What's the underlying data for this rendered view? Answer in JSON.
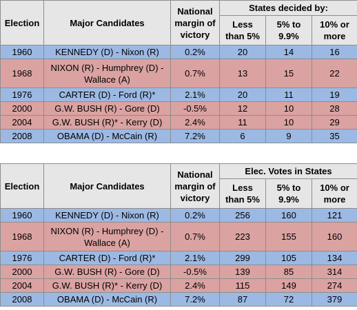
{
  "table1": {
    "header": {
      "election": "Election",
      "candidates": "Major Candidates",
      "margin_line1": "National",
      "margin_line2": "margin of",
      "margin_line3": "victory",
      "group": "States decided by:",
      "sub1_line1": "Less",
      "sub1_line2": "than 5%",
      "sub2_line1": "5% to",
      "sub2_line2": "9.9%",
      "sub3_line1": "10% or",
      "sub3_line2": "more"
    },
    "rows": [
      {
        "year": "1960",
        "candidates": "KENNEDY (D) - Nixon (R)",
        "margin": "0.2%",
        "lt5": "20",
        "mid": "14",
        "gt10": "16",
        "party": "blue"
      },
      {
        "year": "1968",
        "candidates_line1": "NIXON (R) - Humphrey (D) -",
        "candidates_line2": "Wallace (A)",
        "margin": "0.7%",
        "lt5": "13",
        "mid": "15",
        "gt10": "22",
        "party": "red"
      },
      {
        "year": "1976",
        "candidates": "CARTER (D) - Ford (R)*",
        "margin": "2.1%",
        "lt5": "20",
        "mid": "11",
        "gt10": "19",
        "party": "blue"
      },
      {
        "year": "2000",
        "candidates": "G.W. BUSH (R) - Gore (D)",
        "margin": "-0.5%",
        "lt5": "12",
        "mid": "10",
        "gt10": "28",
        "party": "red"
      },
      {
        "year": "2004",
        "candidates": "G.W. BUSH (R)* - Kerry (D)",
        "margin": "2.4%",
        "lt5": "11",
        "mid": "10",
        "gt10": "29",
        "party": "red"
      },
      {
        "year": "2008",
        "candidates": "OBAMA (D) - McCain (R)",
        "margin": "7.2%",
        "lt5": "6",
        "mid": "9",
        "gt10": "35",
        "party": "blue"
      }
    ]
  },
  "table2": {
    "header": {
      "election": "Election",
      "candidates": "Major Candidates",
      "margin_line1": "National",
      "margin_line2": "margin of",
      "margin_line3": "victory",
      "group": "Elec. Votes in States",
      "sub1_line1": "Less",
      "sub1_line2": "than 5%",
      "sub2_line1": "5% to",
      "sub2_line2": "9.9%",
      "sub3_line1": "10% or",
      "sub3_line2": "more"
    },
    "rows": [
      {
        "year": "1960",
        "candidates": "KENNEDY (D) - Nixon (R)",
        "margin": "0.2%",
        "lt5": "256",
        "mid": "160",
        "gt10": "121",
        "party": "blue"
      },
      {
        "year": "1968",
        "candidates_line1": "NIXON (R) - Humphrey (D) -",
        "candidates_line2": "Wallace (A)",
        "margin": "0.7%",
        "lt5": "223",
        "mid": "155",
        "gt10": "160",
        "party": "red"
      },
      {
        "year": "1976",
        "candidates": "CARTER (D) - Ford (R)*",
        "margin": "2.1%",
        "lt5": "299",
        "mid": "105",
        "gt10": "134",
        "party": "blue"
      },
      {
        "year": "2000",
        "candidates": "G.W. BUSH (R) - Gore (D)",
        "margin": "-0.5%",
        "lt5": "139",
        "mid": "85",
        "gt10": "314",
        "party": "red"
      },
      {
        "year": "2004",
        "candidates": "G.W. BUSH (R)* - Kerry (D)",
        "margin": "2.4%",
        "lt5": "115",
        "mid": "149",
        "gt10": "274",
        "party": "red"
      },
      {
        "year": "2008",
        "candidates": "OBAMA (D) - McCain (R)",
        "margin": "7.2%",
        "lt5": "87",
        "mid": "72",
        "gt10": "379",
        "party": "blue"
      }
    ]
  }
}
